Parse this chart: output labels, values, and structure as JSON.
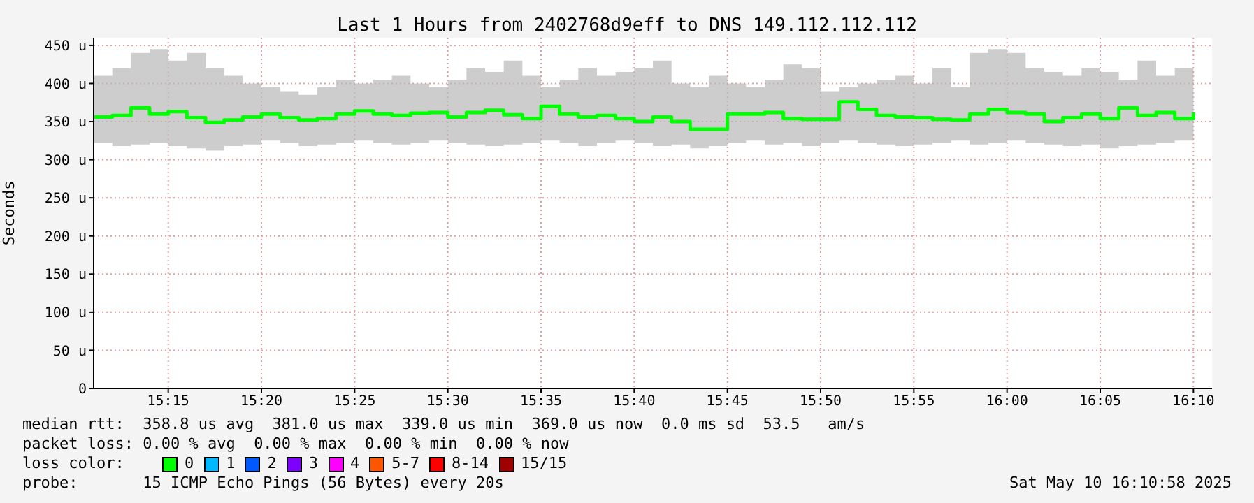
{
  "chart_data": {
    "type": "step",
    "title": "Last 1 Hours from 2402768d9eff to DNS 149.112.112.112",
    "ylabel": "Seconds",
    "x": [
      "2025-05-10T15:11",
      "2025-05-10T15:12",
      "2025-05-10T15:13",
      "2025-05-10T15:14",
      "2025-05-10T15:15",
      "2025-05-10T15:16",
      "2025-05-10T15:17",
      "2025-05-10T15:18",
      "2025-05-10T15:19",
      "2025-05-10T15:20",
      "2025-05-10T15:21",
      "2025-05-10T15:22",
      "2025-05-10T15:23",
      "2025-05-10T15:24",
      "2025-05-10T15:25",
      "2025-05-10T15:26",
      "2025-05-10T15:27",
      "2025-05-10T15:28",
      "2025-05-10T15:29",
      "2025-05-10T15:30",
      "2025-05-10T15:31",
      "2025-05-10T15:32",
      "2025-05-10T15:33",
      "2025-05-10T15:34",
      "2025-05-10T15:35",
      "2025-05-10T15:36",
      "2025-05-10T15:37",
      "2025-05-10T15:38",
      "2025-05-10T15:39",
      "2025-05-10T15:40",
      "2025-05-10T15:41",
      "2025-05-10T15:42",
      "2025-05-10T15:43",
      "2025-05-10T15:44",
      "2025-05-10T15:45",
      "2025-05-10T15:46",
      "2025-05-10T15:47",
      "2025-05-10T15:48",
      "2025-05-10T15:49",
      "2025-05-10T15:50",
      "2025-05-10T15:51",
      "2025-05-10T15:52",
      "2025-05-10T15:53",
      "2025-05-10T15:54",
      "2025-05-10T15:55",
      "2025-05-10T15:56",
      "2025-05-10T15:57",
      "2025-05-10T15:58",
      "2025-05-10T15:59",
      "2025-05-10T16:00",
      "2025-05-10T16:01",
      "2025-05-10T16:02",
      "2025-05-10T16:03",
      "2025-05-10T16:04",
      "2025-05-10T16:05",
      "2025-05-10T16:06",
      "2025-05-10T16:07",
      "2025-05-10T16:08",
      "2025-05-10T16:09",
      "2025-05-10T16:10"
    ],
    "series": [
      {
        "color": "#00ff00",
        "values": [
          356,
          358,
          368,
          360,
          363,
          355,
          349,
          352,
          356,
          360,
          355,
          352,
          354,
          360,
          364,
          360,
          358,
          361,
          362,
          356,
          362,
          365,
          359,
          354,
          370,
          360,
          356,
          358,
          354,
          350,
          356,
          350,
          340,
          340,
          360,
          360,
          362,
          354,
          353,
          353,
          376,
          366,
          358,
          356,
          355,
          353,
          352,
          360,
          366,
          362,
          360,
          350,
          355,
          360,
          354,
          368,
          358,
          362,
          354,
          362
        ],
        "lower": [
          322,
          318,
          320,
          322,
          318,
          315,
          312,
          318,
          320,
          325,
          322,
          318,
          320,
          322,
          325,
          322,
          320,
          322,
          325,
          322,
          320,
          318,
          320,
          322,
          325,
          322,
          318,
          322,
          325,
          322,
          318,
          320,
          315,
          318,
          322,
          325,
          320,
          322,
          318,
          322,
          325,
          322,
          320,
          318,
          320,
          322,
          325,
          320,
          322,
          325,
          322,
          320,
          318,
          320,
          315,
          318,
          320,
          322,
          325,
          322
        ],
        "upper": [
          410,
          420,
          440,
          445,
          430,
          440,
          420,
          410,
          400,
          395,
          390,
          385,
          395,
          405,
          400,
          405,
          410,
          400,
          395,
          405,
          420,
          415,
          430,
          410,
          395,
          405,
          420,
          410,
          415,
          420,
          430,
          400,
          395,
          410,
          400,
          395,
          405,
          425,
          420,
          390,
          395,
          400,
          405,
          410,
          400,
          420,
          395,
          440,
          445,
          440,
          420,
          415,
          410,
          420,
          415,
          405,
          430,
          410,
          420,
          400
        ]
      }
    ],
    "xlim": [
      "2025-05-10T15:11",
      "2025-05-10T16:11"
    ],
    "xticks": [
      {
        "value": "2025-05-10T15:15",
        "label": "15:15"
      },
      {
        "value": "2025-05-10T15:20",
        "label": "15:20"
      },
      {
        "value": "2025-05-10T15:25",
        "label": "15:25"
      },
      {
        "value": "2025-05-10T15:30",
        "label": "15:30"
      },
      {
        "value": "2025-05-10T15:35",
        "label": "15:35"
      },
      {
        "value": "2025-05-10T15:40",
        "label": "15:40"
      },
      {
        "value": "2025-05-10T15:45",
        "label": "15:45"
      },
      {
        "value": "2025-05-10T15:50",
        "label": "15:50"
      },
      {
        "value": "2025-05-10T15:55",
        "label": "15:55"
      },
      {
        "value": "2025-05-10T16:00",
        "label": "16:00"
      },
      {
        "value": "2025-05-10T16:05",
        "label": "16:05"
      },
      {
        "value": "2025-05-10T16:10",
        "label": "16:10"
      }
    ],
    "ylim": [
      0,
      460
    ],
    "yticks": [
      0,
      {
        "value": 50,
        "label": "50 u"
      },
      {
        "value": 100,
        "label": "100 u"
      },
      {
        "value": 150,
        "label": "150 u"
      },
      {
        "value": 200,
        "label": "200 u"
      },
      {
        "value": 250,
        "label": "250 u"
      },
      {
        "value": 300,
        "label": "300 u"
      },
      {
        "value": 350,
        "label": "350 u"
      },
      {
        "value": 400,
        "label": "400 u"
      },
      {
        "value": 450,
        "label": "450 u"
      }
    ],
    "grid": true,
    "annotations": [
      "median rtt:  358.8 us avg  381.0 us max  339.0 us min  369.0 us now  0.0 ms sd  53.5   am/s",
      "packet loss: 0.00 % avg  0.00 % max  0.00 % min  0.00 % now",
      "loss color:",
      "0",
      "1",
      "2",
      "3",
      "4",
      "5-7",
      "8-14",
      "15/15",
      "probe:       15 ICMP Echo Pings (56 Bytes) every 20s",
      "Sat May 10 16:10:58 2025"
    ]
  }
}
